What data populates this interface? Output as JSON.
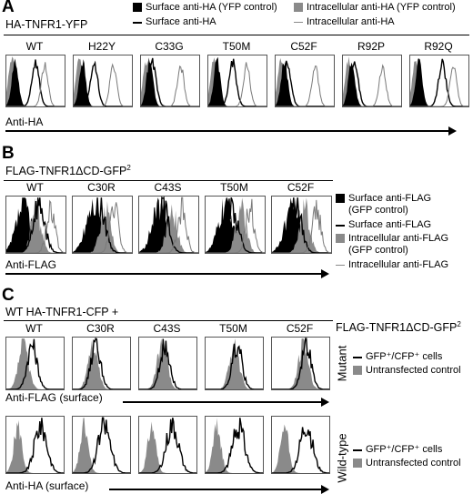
{
  "panel_a": {
    "letter": "A",
    "construct": "HA-TNFR1-YFP",
    "legend": [
      {
        "swatch": "fill-black",
        "label": "Surface anti-HA (YFP control)"
      },
      {
        "swatch": "line-black",
        "label": "Surface anti-HA"
      },
      {
        "swatch": "fill-grey",
        "label": "Intracellular anti-HA (YFP control)"
      },
      {
        "swatch": "line-grey",
        "label": "Intracellular anti-HA"
      }
    ],
    "columns": [
      "WT",
      "H22Y",
      "C33G",
      "T50M",
      "C52F",
      "R92P",
      "R92Q"
    ],
    "axis_label": "Anti-HA"
  },
  "panel_b": {
    "letter": "B",
    "construct": "FLAG-TNFR1ΔCD-GFP",
    "construct_sup": "2",
    "columns": [
      "WT",
      "C30R",
      "C43S",
      "T50M",
      "C52F"
    ],
    "axis_label": "Anti-FLAG",
    "legend": [
      {
        "swatch": "fill-black",
        "label": "Surface anti-FLAG\n(GFP control)"
      },
      {
        "swatch": "line-black",
        "label": "Surface anti-FLAG"
      },
      {
        "swatch": "fill-grey",
        "label": "Intracellular anti-FLAG\n(GFP control)"
      },
      {
        "swatch": "line-grey",
        "label": "Intracellular anti-FLAG"
      }
    ]
  },
  "panel_c": {
    "letter": "C",
    "construct": "WT HA-TNFR1-CFP +",
    "construct_right": "FLAG-TNFR1ΔCD-GFP",
    "construct_right_sup": "2",
    "columns": [
      "WT",
      "C30R",
      "C43S",
      "T50M",
      "C52F"
    ],
    "rows": [
      {
        "side_label": "Mutant",
        "axis_label": "Anti-FLAG (surface)"
      },
      {
        "side_label": "Wild-type",
        "axis_label": "Anti-HA (surface)"
      }
    ],
    "legend": [
      {
        "swatch": "line-black",
        "label": "GFP⁺/CFP⁺ cells"
      },
      {
        "swatch": "fill-grey",
        "label": "Untransfected control"
      }
    ]
  },
  "chart_data": [
    {
      "type": "area",
      "title": "HA-TNFR1-YFP",
      "xlabel": "Anti-HA",
      "categories": [
        "WT",
        "H22Y",
        "C33G",
        "T50M",
        "C52F",
        "R92P",
        "R92Q"
      ],
      "series": [
        {
          "name": "Surface anti-HA (YFP control)",
          "peaks": [
            0.15,
            0.15,
            0.15,
            0.15,
            0.15,
            0.15,
            0.15
          ]
        },
        {
          "name": "Surface anti-HA",
          "peaks": [
            0.5,
            0.35,
            0.2,
            0.42,
            0.2,
            0.2,
            0.55
          ]
        },
        {
          "name": "Intracellular anti-HA (YFP control)",
          "peaks": [
            0.1,
            0.1,
            0.1,
            0.1,
            0.1,
            0.1,
            0.1
          ]
        },
        {
          "name": "Intracellular anti-HA",
          "peaks": [
            0.66,
            0.68,
            0.68,
            0.66,
            0.68,
            0.68,
            0.74
          ]
        }
      ]
    },
    {
      "type": "area",
      "title": "FLAG-TNFR1ΔCD-GFP2",
      "xlabel": "Anti-FLAG",
      "categories": [
        "WT",
        "C30R",
        "C43S",
        "T50M",
        "C52F"
      ],
      "series": [
        {
          "name": "Surface anti-FLAG (GFP control)",
          "peaks": [
            0.3,
            0.35,
            0.35,
            0.35,
            0.35
          ]
        },
        {
          "name": "Surface anti-FLAG",
          "peaks": [
            0.55,
            0.45,
            0.4,
            0.45,
            0.4
          ]
        },
        {
          "name": "Intracellular anti-FLAG (GFP control)",
          "peaks": [
            0.5,
            0.55,
            0.55,
            0.6,
            0.55
          ]
        },
        {
          "name": "Intracellular anti-FLAG",
          "peaks": [
            0.75,
            0.7,
            0.72,
            0.75,
            0.75
          ]
        }
      ]
    },
    {
      "type": "area",
      "title": "WT HA-TNFR1-CFP + FLAG-TNFR1ΔCD-GFP2",
      "xlabel": "Anti-FLAG (surface)",
      "ylabel": "Mutant",
      "categories": [
        "WT",
        "C30R",
        "C43S",
        "T50M",
        "C52F"
      ],
      "series": [
        {
          "name": "GFP⁺/CFP⁺ cells",
          "peaks": [
            0.45,
            0.4,
            0.45,
            0.55,
            0.6
          ]
        },
        {
          "name": "Untransfected control",
          "peaks": [
            0.3,
            0.35,
            0.4,
            0.5,
            0.55
          ]
        }
      ]
    },
    {
      "type": "area",
      "xlabel": "Anti-HA (surface)",
      "ylabel": "Wild-type",
      "categories": [
        "WT",
        "C30R",
        "C43S",
        "T50M",
        "C52F"
      ],
      "series": [
        {
          "name": "GFP⁺/CFP⁺ cells",
          "peaks": [
            0.6,
            0.55,
            0.58,
            0.58,
            0.6
          ]
        },
        {
          "name": "Untransfected control",
          "peaks": [
            0.2,
            0.2,
            0.22,
            0.2,
            0.22
          ]
        }
      ]
    }
  ]
}
